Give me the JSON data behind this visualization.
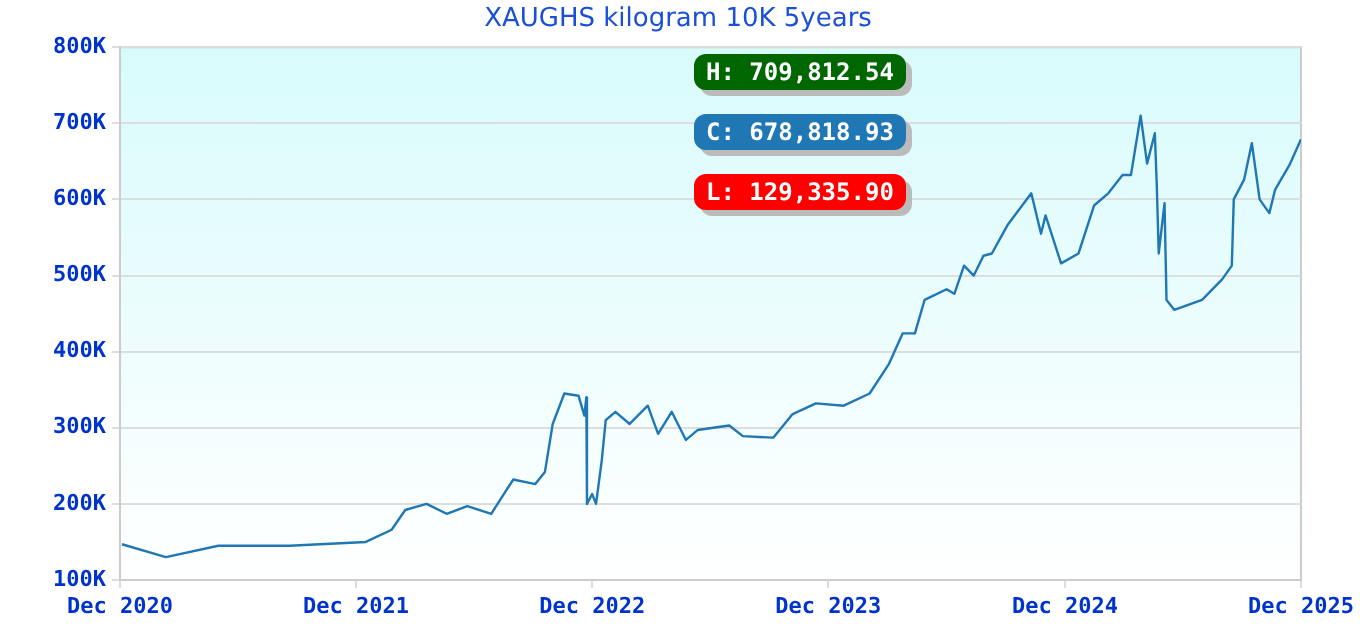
{
  "chart_data": {
    "type": "line",
    "title": "XAUGHS kilogram 10K 5years",
    "annotations": [
      "H: 709,812.54",
      "C: 678,818.93",
      "L: 129,335.90"
    ],
    "x": [
      "2020-12-04",
      "2021-02-10",
      "2021-05-02",
      "2021-08-20",
      "2021-12-16",
      "2022-01-25",
      "2022-02-15",
      "2022-03-20",
      "2022-04-20",
      "2022-05-22",
      "2022-06-28",
      "2022-08-01",
      "2022-09-04",
      "2022-09-19",
      "2022-10-01",
      "2022-10-19",
      "2022-11-10",
      "2022-11-19",
      "2022-11-22",
      "2022-11-23",
      "2022-12-01",
      "2022-12-07",
      "2022-12-16",
      "2022-12-22",
      "2023-01-06",
      "2023-01-28",
      "2023-02-25",
      "2023-03-13",
      "2023-04-03",
      "2023-04-25",
      "2023-05-13",
      "2023-07-01",
      "2023-07-22",
      "2023-09-07",
      "2023-10-07",
      "2023-11-12",
      "2023-12-25",
      "2024-02-03",
      "2024-03-04",
      "2024-03-25",
      "2024-04-13",
      "2024-04-28",
      "2024-06-01",
      "2024-06-13",
      "2024-06-28",
      "2024-07-13",
      "2024-07-28",
      "2024-08-10",
      "2024-09-03",
      "2024-10-10",
      "2024-10-25",
      "2024-11-01",
      "2024-11-25",
      "2024-12-22",
      "2025-01-15",
      "2025-02-06",
      "2025-02-28",
      "2025-03-13",
      "2025-03-28",
      "2025-04-07",
      "2025-04-19",
      "2025-04-22",
      "2025-04-25",
      "2025-05-04",
      "2025-05-07",
      "2025-05-19",
      "2025-07-01",
      "2025-08-01",
      "2025-08-16",
      "2025-08-19",
      "2025-09-04",
      "2025-09-16",
      "2025-09-28",
      "2025-10-13",
      "2025-10-22",
      "2025-11-13",
      "2025-12-01"
    ],
    "series": [
      {
        "color": "#1f77b4",
        "values": [
          147000,
          130000,
          145000,
          145000,
          150000,
          166000,
          192000,
          200000,
          187000,
          197000,
          187000,
          232000,
          226000,
          242000,
          305000,
          345000,
          342000,
          316000,
          340000,
          200000,
          213000,
          200000,
          258000,
          310000,
          321000,
          305000,
          329000,
          292000,
          321000,
          284000,
          297000,
          303000,
          289000,
          287000,
          318000,
          332000,
          329000,
          345000,
          384000,
          424000,
          424000,
          468000,
          482000,
          476000,
          513000,
          500000,
          526000,
          529000,
          566000,
          608000,
          555000,
          579000,
          516000,
          529000,
          592000,
          608000,
          632000,
          632000,
          710000,
          647000,
          687000,
          618000,
          529000,
          595000,
          468000,
          455000,
          468000,
          495000,
          513000,
          600000,
          626000,
          674000,
          600000,
          582000,
          613000,
          645000,
          679000
        ]
      }
    ],
    "xlim": [
      "2020-12-01",
      "2025-12-01"
    ],
    "xticks": [
      {
        "value": "2020-12-01",
        "label": "Dec 2020"
      },
      {
        "value": "2021-12-01",
        "label": "Dec 2021"
      },
      {
        "value": "2022-12-01",
        "label": "Dec 2022"
      },
      {
        "value": "2023-12-01",
        "label": "Dec 2023"
      },
      {
        "value": "2024-12-01",
        "label": "Dec 2024"
      },
      {
        "value": "2025-12-01",
        "label": "Dec 2025"
      }
    ],
    "ylim": [
      100000,
      800000
    ],
    "yticks": [
      {
        "value": 100000,
        "label": "100K"
      },
      {
        "value": 200000,
        "label": "200K"
      },
      {
        "value": 300000,
        "label": "300K"
      },
      {
        "value": 400000,
        "label": "400K"
      },
      {
        "value": 500000,
        "label": "500K"
      },
      {
        "value": 600000,
        "label": "600K"
      },
      {
        "value": 700000,
        "label": "700K"
      },
      {
        "value": 800000,
        "label": "800K"
      }
    ],
    "grid": "y",
    "legend": false,
    "marker": "none",
    "line_style": "solid"
  }
}
